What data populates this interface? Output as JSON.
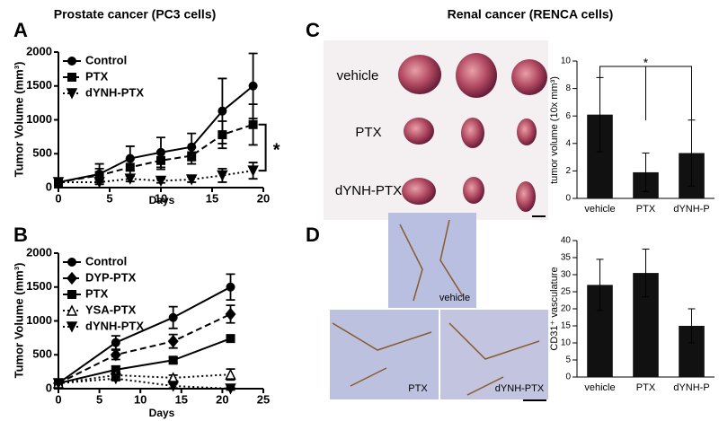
{
  "chart_data": [
    {
      "type": "line",
      "panel": "A",
      "title": "Prostate cancer (PC3 cells)",
      "xlabel": "Days",
      "ylabel": "Tumor Volume (mm³)",
      "x": [
        0,
        4,
        7,
        10,
        13,
        16,
        19
      ],
      "xlim": [
        0,
        20
      ],
      "xticks": [
        0,
        5,
        10,
        15,
        20
      ],
      "ylim": [
        0,
        2000
      ],
      "yticks": [
        0,
        500,
        1000,
        1500,
        2000
      ],
      "legend": "upper left",
      "annotation": "*",
      "series": [
        {
          "name": "Control",
          "color": "#000000",
          "marker": "circle",
          "line_style": "solid",
          "values": [
            80,
            200,
            430,
            520,
            600,
            1130,
            1500
          ],
          "errors": [
            0,
            150,
            180,
            220,
            200,
            480,
            480
          ]
        },
        {
          "name": "PTX",
          "color": "#000000",
          "marker": "square",
          "line_style": "dashed",
          "values": [
            80,
            180,
            300,
            400,
            470,
            780,
            930
          ],
          "errors": [
            0,
            100,
            120,
            130,
            120,
            200,
            300
          ]
        },
        {
          "name": "dYNH-PTX",
          "color": "#000000",
          "marker": "triangle-down",
          "line_style": "dotted",
          "values": [
            80,
            80,
            130,
            100,
            120,
            180,
            250
          ],
          "errors": [
            0,
            30,
            40,
            30,
            40,
            100,
            120
          ]
        }
      ]
    },
    {
      "type": "line",
      "panel": "B",
      "xlabel": "Days",
      "ylabel": "Tumor Volume (mm³)",
      "x": [
        0,
        7,
        14,
        21
      ],
      "xlim": [
        0,
        25
      ],
      "xticks": [
        0,
        5,
        10,
        15,
        20,
        25
      ],
      "ylim": [
        0,
        2000
      ],
      "yticks": [
        0,
        500,
        1000,
        1500,
        2000
      ],
      "legend": "upper left",
      "series": [
        {
          "name": "Control",
          "color": "#000000",
          "marker": "circle",
          "line_style": "solid",
          "values": [
            80,
            680,
            1050,
            1500
          ],
          "errors": [
            0,
            100,
            160,
            190
          ]
        },
        {
          "name": "DYP-PTX",
          "color": "#000000",
          "marker": "diamond",
          "line_style": "dashed",
          "values": [
            80,
            500,
            700,
            1100
          ],
          "errors": [
            0,
            70,
            100,
            130
          ]
        },
        {
          "name": "PTX",
          "color": "#000000",
          "marker": "square",
          "line_style": "solid",
          "values": [
            80,
            280,
            420,
            740
          ],
          "errors": [
            0,
            50,
            40,
            50
          ]
        },
        {
          "name": "YSA-PTX",
          "color": "#000000",
          "marker": "triangle-up",
          "line_style": "dotted",
          "values": [
            80,
            200,
            160,
            210
          ],
          "errors": [
            0,
            40,
            40,
            80
          ]
        },
        {
          "name": "dYNH-PTX",
          "color": "#000000",
          "marker": "triangle-down",
          "line_style": "dotted",
          "values": [
            80,
            150,
            40,
            0
          ],
          "errors": [
            0,
            30,
            30,
            20
          ]
        }
      ]
    },
    {
      "type": "bar",
      "panel": "C",
      "title": "Renal cancer (RENCA cells)",
      "ylabel": "tumor volume (10x mm³)",
      "image_labels": [
        "vehicle",
        "PTX",
        "dYNH-PTX"
      ],
      "annotation": "*",
      "categories": [
        "vehicle",
        "PTX",
        "dYNH-P"
      ],
      "values": [
        6.1,
        1.9,
        3.3
      ],
      "errors": [
        2.7,
        1.4,
        2.4
      ],
      "color": "#111111",
      "ylim": [
        0,
        10
      ],
      "yticks": [
        0,
        2,
        4,
        6,
        8,
        10
      ]
    },
    {
      "type": "bar",
      "panel": "D",
      "ylabel": "CD31⁺ vasculature",
      "image_labels": [
        "vehicle",
        "PTX",
        "dYNH-PTX"
      ],
      "categories": [
        "vehicle",
        "PTX",
        "dYNH-P"
      ],
      "values": [
        27,
        30.5,
        15
      ],
      "errors": [
        7.5,
        7,
        5
      ],
      "color": "#111111",
      "ylim": [
        0,
        40
      ],
      "yticks": [
        0,
        5,
        10,
        15,
        20,
        25,
        30,
        35,
        40
      ]
    }
  ]
}
